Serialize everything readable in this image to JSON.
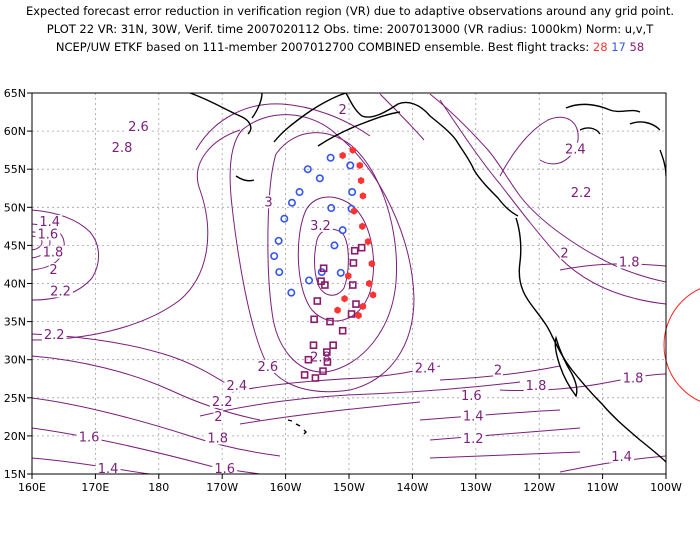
{
  "header": {
    "line1": "Expected forecast error reduction in verification region (VR) due to adaptive observations around any grid point.",
    "line2": "PLOT 22 VR: 31N, 30W, Verif. time 2007020112 Obs. time: 2007013000 (VR radius: 1000km) Norm: u,v,T",
    "line3_prefix": "NCEP/UW ETKF based on 111-member 2007012700 COMBINED ensemble.   Best flight tracks: ",
    "track_a": "28",
    "track_b": "17",
    "track_c": "58"
  },
  "map": {
    "lon_range": [
      160,
      260
    ],
    "lat_range": [
      15,
      65
    ],
    "x_ticks": [
      "160E",
      "170E",
      "180",
      "170W",
      "160W",
      "150W",
      "140W",
      "130W",
      "120W",
      "110W",
      "100W"
    ],
    "y_ticks": [
      "15N",
      "20N",
      "25N",
      "30N",
      "35N",
      "40N",
      "45N",
      "50N",
      "55N",
      "60N",
      "65N"
    ],
    "grid": true,
    "contour_color": "#7a1f7a",
    "track_colors": {
      "track_28": "#ff3333",
      "track_17": "#3355ee",
      "track_58": "#8b1a6b"
    },
    "contour_labels": [
      {
        "text": "2",
        "lon": 209,
        "lat": 62.5
      },
      {
        "text": "2.6",
        "lon": 176.8,
        "lat": 60.3
      },
      {
        "text": "2.8",
        "lon": 174.2,
        "lat": 57.5
      },
      {
        "text": "2.4",
        "lon": 245.7,
        "lat": 57.3
      },
      {
        "text": "2.2",
        "lon": 246.6,
        "lat": 51.6
      },
      {
        "text": "3",
        "lon": 197.3,
        "lat": 50.4
      },
      {
        "text": "1.4",
        "lon": 162.8,
        "lat": 47.8
      },
      {
        "text": "1.6",
        "lon": 162.5,
        "lat": 46.2
      },
      {
        "text": "3.2",
        "lon": 205.5,
        "lat": 47.3
      },
      {
        "text": "1.8",
        "lon": 163.3,
        "lat": 43.8
      },
      {
        "text": "2",
        "lon": 244.0,
        "lat": 43.7
      },
      {
        "text": "1.8",
        "lon": 254.2,
        "lat": 42.5
      },
      {
        "text": "2",
        "lon": 163.4,
        "lat": 41.5
      },
      {
        "text": "2.2",
        "lon": 164.5,
        "lat": 38.7
      },
      {
        "text": "2.2",
        "lon": 163.5,
        "lat": 33.0
      },
      {
        "text": "2.8",
        "lon": 205.5,
        "lat": 30.0
      },
      {
        "text": "2.6",
        "lon": 197.2,
        "lat": 28.8
      },
      {
        "text": "2.4",
        "lon": 222.0,
        "lat": 28.6
      },
      {
        "text": "2",
        "lon": 233.5,
        "lat": 28.3
      },
      {
        "text": "1.8",
        "lon": 254.8,
        "lat": 27.3
      },
      {
        "text": "2.4",
        "lon": 192.3,
        "lat": 26.3
      },
      {
        "text": "1.8",
        "lon": 239.5,
        "lat": 26.3
      },
      {
        "text": "2.2",
        "lon": 190.0,
        "lat": 24.2
      },
      {
        "text": "1.6",
        "lon": 229.3,
        "lat": 25.0
      },
      {
        "text": "2",
        "lon": 189.4,
        "lat": 22.2
      },
      {
        "text": "1.4",
        "lon": 229.6,
        "lat": 22.3
      },
      {
        "text": "1.6",
        "lon": 169.0,
        "lat": 19.5
      },
      {
        "text": "1.8",
        "lon": 189.3,
        "lat": 19.4
      },
      {
        "text": "1.2",
        "lon": 229.6,
        "lat": 19.3
      },
      {
        "text": "1.4",
        "lon": 253.0,
        "lat": 17.0
      },
      {
        "text": "1.4",
        "lon": 172.0,
        "lat": 15.4
      },
      {
        "text": "1.6",
        "lon": 190.4,
        "lat": 15.4
      }
    ],
    "track_28_points": [
      [
        209,
        56.8
      ],
      [
        210.6,
        57.5
      ],
      [
        211.7,
        55.5
      ],
      [
        211.9,
        53.5
      ],
      [
        212.2,
        51.5
      ],
      [
        210.8,
        49.5
      ],
      [
        212.1,
        47.5
      ],
      [
        213.0,
        45.5
      ],
      [
        213.6,
        42.6
      ],
      [
        213.2,
        40.0
      ],
      [
        213.8,
        38.5
      ],
      [
        212.2,
        37.0
      ],
      [
        211.5,
        35.8
      ],
      [
        208.2,
        36.5
      ],
      [
        209.3,
        38.0
      ],
      [
        209.9,
        41.0
      ]
    ],
    "track_17_points": [
      [
        207.1,
        56.5
      ],
      [
        210.2,
        55.5
      ],
      [
        203.5,
        55.0
      ],
      [
        205.4,
        53.8
      ],
      [
        210.5,
        52.0
      ],
      [
        202.2,
        52.0
      ],
      [
        201.0,
        50.6
      ],
      [
        207.2,
        49.9
      ],
      [
        210.4,
        49.8
      ],
      [
        199.8,
        48.5
      ],
      [
        209.0,
        47.0
      ],
      [
        198.9,
        45.6
      ],
      [
        207.7,
        45.0
      ],
      [
        198.2,
        43.6
      ],
      [
        199.0,
        41.5
      ],
      [
        205.7,
        41.5
      ],
      [
        208.7,
        41.4
      ],
      [
        200.9,
        38.8
      ],
      [
        203.7,
        40.4
      ]
    ],
    "track_58_points": [
      [
        210.9,
        44.3
      ],
      [
        212.0,
        44.7
      ],
      [
        210.7,
        42.7
      ],
      [
        206.0,
        42.0
      ],
      [
        205.6,
        40.3
      ],
      [
        206.2,
        39.8
      ],
      [
        210.6,
        39.8
      ],
      [
        205.0,
        37.7
      ],
      [
        211.1,
        37.3
      ],
      [
        210.4,
        36.0
      ],
      [
        204.5,
        35.3
      ],
      [
        207.0,
        35.0
      ],
      [
        209.0,
        33.8
      ],
      [
        204.4,
        31.9
      ],
      [
        207.5,
        31.9
      ],
      [
        206.5,
        31.0
      ],
      [
        203.6,
        30.0
      ],
      [
        206.6,
        29.7
      ],
      [
        205.9,
        28.5
      ],
      [
        203.0,
        28.0
      ],
      [
        204.7,
        27.6
      ]
    ]
  }
}
